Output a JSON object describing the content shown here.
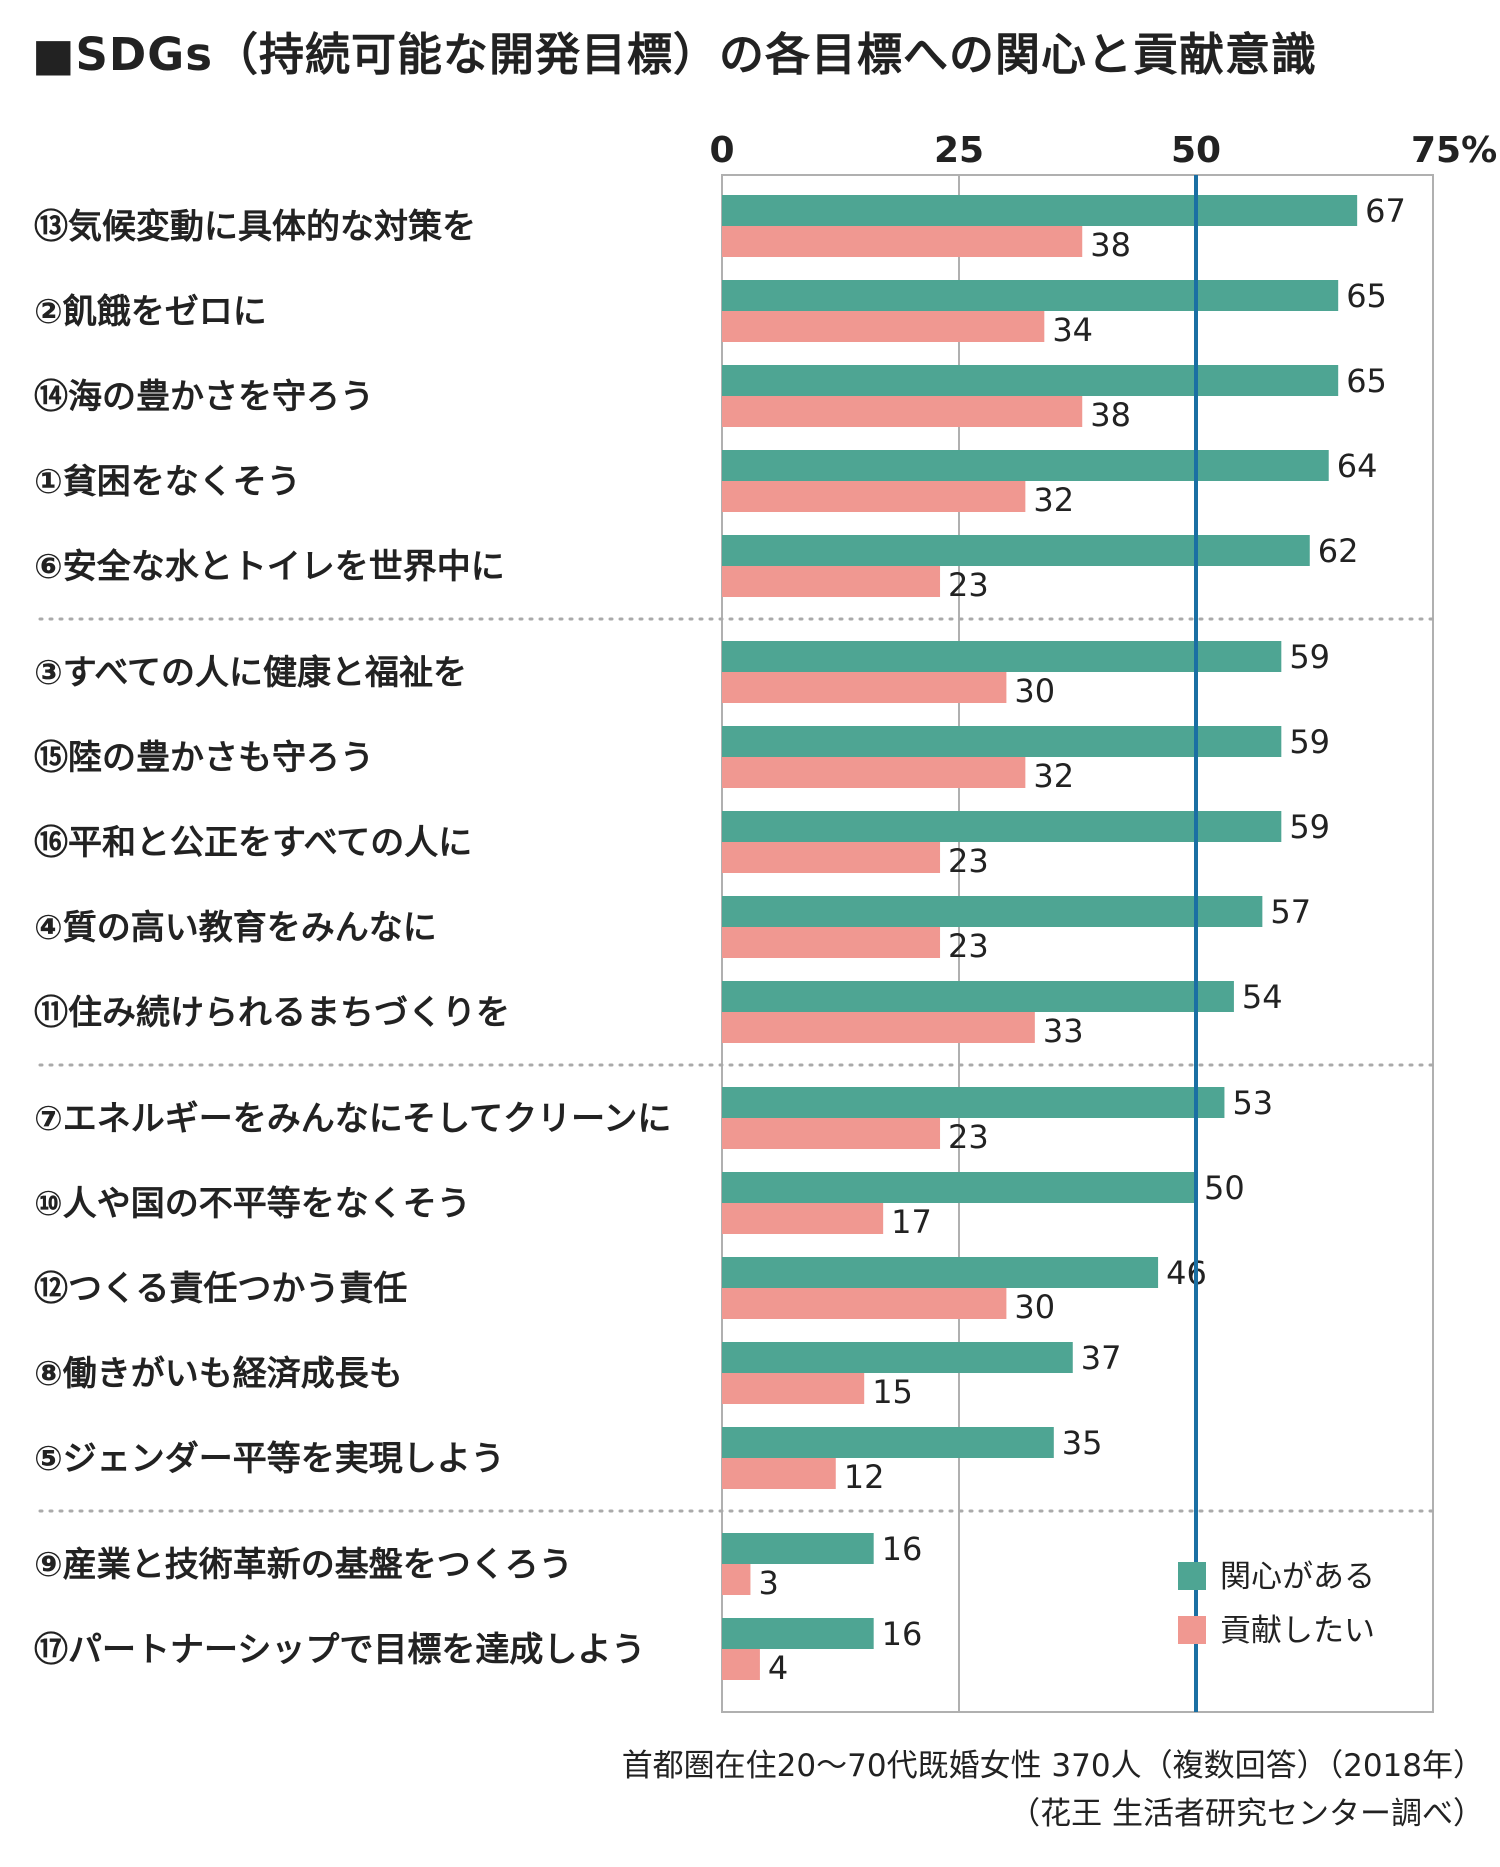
{
  "title": "■SDGs（持続可能な開発目標）の各目標への関心と貢献意識",
  "source": {
    "line1": "首都圏在住20〜70代既婚女性 370人（複数回答）（2018年）",
    "line2": "（花王 生活者研究センター調べ）"
  },
  "colors": {
    "interest": "#4ea593",
    "contribute": "#f09891",
    "reference_line": "#1a6fa3",
    "grid": "#b0b0b0"
  },
  "chart_data": {
    "type": "bar",
    "orientation": "horizontal",
    "title": "■SDGs（持続可能な開発目標）の各目標への関心と貢献意識",
    "x_ticks": [
      "0",
      "25",
      "50",
      "75%"
    ],
    "xlim": [
      0,
      75
    ],
    "unit": "%",
    "reference_line": 50,
    "legend_position": "bottom-right",
    "categories": [
      "⑬気候変動に具体的な対策を",
      "②飢餓をゼロに",
      "⑭海の豊かさを守ろう",
      "①貧困をなくそう",
      "⑥安全な水とトイレを世界中に",
      "③すべての人に健康と福祉を",
      "⑮陸の豊かさも守ろう",
      "⑯平和と公正をすべての人に",
      "④質の高い教育をみんなに",
      "⑪住み続けられるまちづくりを",
      "⑦エネルギーをみんなにそしてクリーンに",
      "⑩人や国の不平等をなくそう",
      "⑫つくる責任つかう責任",
      "⑧働きがいも経済成長も",
      "⑤ジェンダー平等を実現しよう",
      "⑨産業と技術革新の基盤をつくろう",
      "⑰パートナーシップで目標を達成しよう"
    ],
    "group_sizes": [
      5,
      5,
      5,
      2
    ],
    "series": [
      {
        "name": "関心がある",
        "values": [
          67,
          65,
          65,
          64,
          62,
          59,
          59,
          59,
          57,
          54,
          53,
          50,
          46,
          37,
          35,
          16,
          16
        ]
      },
      {
        "name": "貢献したい",
        "values": [
          38,
          34,
          38,
          32,
          23,
          30,
          32,
          23,
          23,
          33,
          23,
          17,
          30,
          15,
          12,
          3,
          4
        ]
      }
    ]
  }
}
